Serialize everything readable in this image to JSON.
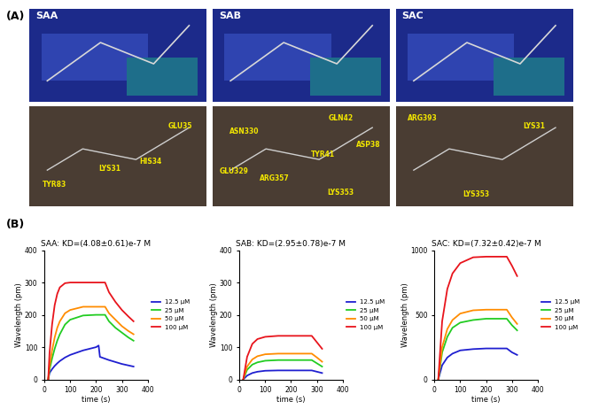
{
  "panel_labels": [
    "(A)",
    "(B)"
  ],
  "docking": [
    {
      "ligand": "SAA",
      "residues": [
        "GLU35",
        "HIS34",
        "LYS31",
        "TYR83"
      ]
    },
    {
      "ligand": "SAB",
      "residues": [
        "GLN42",
        "ASP38",
        "TYR41",
        "ASN330",
        "GLU329",
        "ARG357",
        "LYS353"
      ]
    },
    {
      "ligand": "SAC",
      "residues": [
        "ARG393",
        "LYS31",
        "LYS353"
      ]
    }
  ],
  "chart_data": [
    {
      "type": "line",
      "title": "SAA: KD=(4.08±0.61)e-7 M",
      "x_label": "time (s)",
      "y_label": "Wavelength (pm)",
      "xlim": [
        0,
        400
      ],
      "xticks": [
        0,
        100,
        200,
        300,
        400
      ],
      "ylim": [
        0,
        400
      ],
      "yticks": [
        0,
        100,
        200,
        300,
        400
      ],
      "legend": "right",
      "series": [
        {
          "name": "12.5 μM",
          "color": "#1f1fd0",
          "x": [
            15,
            20,
            30,
            40,
            50,
            60,
            80,
            100,
            150,
            200,
            210,
            215,
            250,
            300,
            345
          ],
          "values": [
            0,
            20,
            32,
            42,
            50,
            57,
            68,
            76,
            90,
            100,
            105,
            70,
            60,
            48,
            40
          ]
        },
        {
          "name": "25 μM",
          "color": "#22cc22",
          "x": [
            15,
            20,
            30,
            40,
            50,
            60,
            80,
            100,
            150,
            200,
            235,
            250,
            275,
            300,
            325,
            345
          ],
          "values": [
            0,
            30,
            65,
            95,
            120,
            140,
            170,
            185,
            198,
            200,
            200,
            180,
            160,
            145,
            130,
            120
          ]
        },
        {
          "name": "50 μM",
          "color": "#ff8c00",
          "x": [
            15,
            20,
            30,
            40,
            50,
            60,
            80,
            100,
            150,
            200,
            235,
            250,
            275,
            300,
            325,
            345
          ],
          "values": [
            0,
            40,
            90,
            130,
            160,
            180,
            205,
            215,
            225,
            225,
            225,
            205,
            185,
            165,
            150,
            140
          ]
        },
        {
          "name": "100 μM",
          "color": "#e8141c",
          "x": [
            15,
            20,
            30,
            40,
            50,
            60,
            80,
            100,
            150,
            200,
            235,
            250,
            275,
            300,
            325,
            345
          ],
          "values": [
            0,
            80,
            170,
            230,
            265,
            285,
            298,
            300,
            300,
            300,
            300,
            270,
            240,
            215,
            195,
            180
          ]
        }
      ]
    },
    {
      "type": "line",
      "title": "SAB: KD=(2.95±0.78)e-7 M",
      "x_label": "time (s)",
      "y_label": "Wavelength (pm)",
      "xlim": [
        0,
        400
      ],
      "xticks": [
        0,
        100,
        200,
        300,
        400
      ],
      "ylim": [
        0,
        400
      ],
      "yticks": [
        0,
        100,
        200,
        300,
        400
      ],
      "legend": "right",
      "series": [
        {
          "name": "12.5 μM",
          "color": "#1f1fd0",
          "x": [
            15,
            30,
            50,
            70,
            100,
            150,
            200,
            280,
            300,
            320
          ],
          "values": [
            0,
            12,
            20,
            24,
            27,
            28,
            28,
            28,
            24,
            20
          ]
        },
        {
          "name": "25 μM",
          "color": "#22cc22",
          "x": [
            15,
            30,
            50,
            70,
            100,
            150,
            200,
            280,
            300,
            320
          ],
          "values": [
            0,
            30,
            46,
            53,
            58,
            60,
            60,
            60,
            50,
            40
          ]
        },
        {
          "name": "50 μM",
          "color": "#ff8c00",
          "x": [
            15,
            30,
            50,
            70,
            100,
            150,
            200,
            280,
            300,
            320
          ],
          "values": [
            0,
            40,
            62,
            72,
            78,
            80,
            80,
            80,
            68,
            55
          ]
        },
        {
          "name": "100 μM",
          "color": "#e8141c",
          "x": [
            15,
            30,
            50,
            70,
            100,
            150,
            200,
            280,
            300,
            320
          ],
          "values": [
            0,
            70,
            110,
            125,
            132,
            135,
            135,
            135,
            115,
            95
          ]
        }
      ]
    },
    {
      "type": "line",
      "title": "SAC: KD=(7.32±0.42)e-7 M",
      "x_label": "time (s)",
      "y_label": "Wavelength (pm)",
      "xlim": [
        0,
        400
      ],
      "xticks": [
        0,
        100,
        200,
        300,
        400
      ],
      "ylim": [
        0,
        1000
      ],
      "yticks": [
        0,
        500,
        1000
      ],
      "legend": "right",
      "series": [
        {
          "name": "12.5 μM",
          "color": "#1f1fd0",
          "x": [
            15,
            30,
            50,
            70,
            100,
            150,
            200,
            280,
            300,
            320
          ],
          "values": [
            0,
            110,
            170,
            200,
            225,
            235,
            240,
            240,
            210,
            190
          ]
        },
        {
          "name": "25 μM",
          "color": "#22cc22",
          "x": [
            15,
            30,
            50,
            70,
            100,
            150,
            200,
            280,
            300,
            320
          ],
          "values": [
            0,
            210,
            330,
            400,
            440,
            460,
            470,
            470,
            420,
            380
          ]
        },
        {
          "name": "50 μM",
          "color": "#ff8c00",
          "x": [
            15,
            30,
            50,
            70,
            100,
            150,
            200,
            280,
            300,
            320
          ],
          "values": [
            0,
            250,
            390,
            460,
            510,
            535,
            540,
            540,
            480,
            430
          ]
        },
        {
          "name": "100 μM",
          "color": "#e8141c",
          "x": [
            15,
            30,
            50,
            70,
            100,
            150,
            200,
            280,
            300,
            320
          ],
          "values": [
            0,
            450,
            700,
            820,
            900,
            945,
            950,
            950,
            880,
            800
          ]
        }
      ]
    }
  ]
}
